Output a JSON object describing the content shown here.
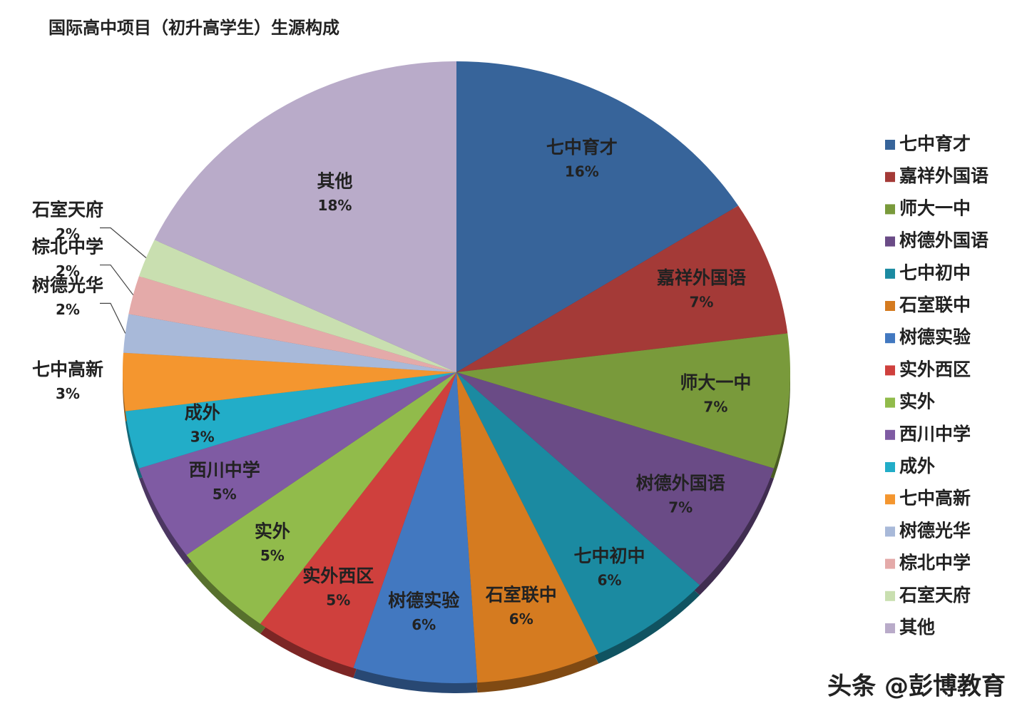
{
  "chart_data": {
    "type": "pie",
    "title": "国际高中项目（初升高学生）生源构成",
    "categories": [
      "七中育才",
      "嘉祥外国语",
      "师大一中",
      "树德外国语",
      "七中初中",
      "石室联中",
      "树德实验",
      "实外西区",
      "实外",
      "西川中学",
      "成外",
      "七中高新",
      "树德光华",
      "棕北中学",
      "石室天府",
      "其他"
    ],
    "values": [
      16,
      7,
      7,
      7,
      6,
      6,
      6,
      5,
      5,
      5,
      3,
      3,
      2,
      2,
      2,
      18
    ],
    "value_labels": [
      "16%",
      "7%",
      "7%",
      "7%",
      "6%",
      "6%",
      "6%",
      "5%",
      "5%",
      "5%",
      "3%",
      "3%",
      "2%",
      "2%",
      "2%",
      "18%"
    ],
    "colors": [
      "#37649a",
      "#a43a37",
      "#799a3b",
      "#6a4b86",
      "#1b8aa1",
      "#d57b20",
      "#4278c0",
      "#cf403d",
      "#91bb4b",
      "#7f5ba3",
      "#22adc8",
      "#f4962f",
      "#a8b9d9",
      "#e4aaa9",
      "#c9dfb0",
      "#b9abc9"
    ],
    "legend": "right",
    "watermark": "头条 @彭博教育"
  }
}
